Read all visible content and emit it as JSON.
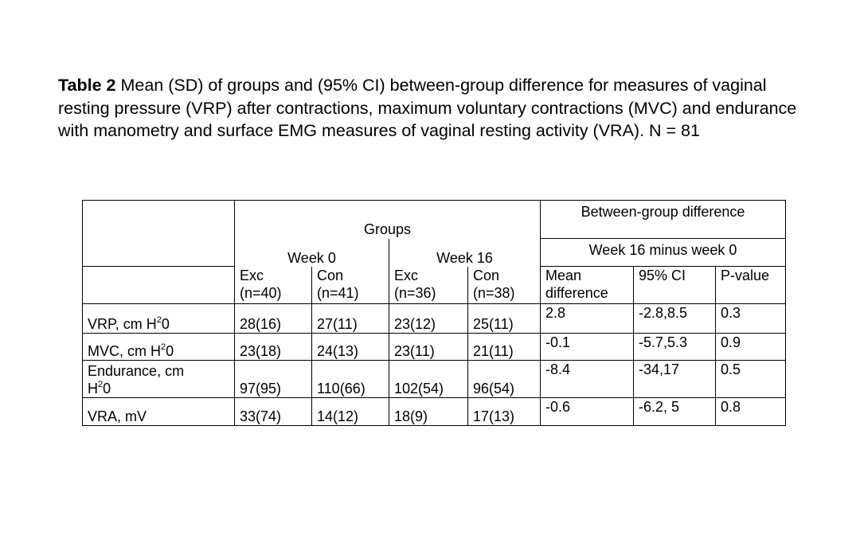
{
  "caption": {
    "label": "Table 2",
    "text": " Mean (SD) of groups and (95% CI) between-group difference for measures of vaginal resting pressure (VRP) after contractions, maximum voluntary contractions (MVC) and endurance with manometry and surface EMG measures of vaginal resting activity (VRA). N = 81"
  },
  "table": {
    "groups_header": "Groups",
    "between_header": "Between-group difference",
    "week0": "Week 0",
    "week16": "Week 16",
    "week_diff": "Week 16 minus week 0",
    "exc": "Exc",
    "con": "Con",
    "n_exc0": "(n=40)",
    "n_con0": "(n=41)",
    "n_exc16": "(n=36)",
    "n_con16": "(n=38)",
    "mean_diff_1": "Mean",
    "mean_diff_2": "difference",
    "ci": "95% CI",
    "pvalue": "P-value",
    "rows": [
      {
        "label_a": "VRP, cm H",
        "sup": "2",
        "label_b": "0",
        "exc0": "28(16)",
        "con0": "27(11)",
        "exc16": "23(12)",
        "con16": "25(11)",
        "mean": "2.8",
        "ci": "-2.8,8.5",
        "p": "0.3"
      },
      {
        "label_a": "MVC, cm H",
        "sup": "2",
        "label_b": "0",
        "exc0": "23(18)",
        "con0": "24(13)",
        "exc16": "23(11)",
        "con16": "21(11)",
        "mean": "-0.1",
        "ci": "-5.7,5.3",
        "p": "0.9"
      },
      {
        "label_line1": "Endurance, cm",
        "label_a": "H",
        "sup": "2",
        "label_b": "0",
        "exc0": "97(95)",
        "con0": "110(66)",
        "exc16": "102(54)",
        "con16": "96(54)",
        "mean": "-8.4",
        "ci": "-34,17",
        "p": "0.5"
      },
      {
        "label_a": "VRA, mV",
        "exc0": "33(74)",
        "con0": "14(12)",
        "exc16": "18(9)",
        "con16": "17(13)",
        "mean": "-0.6",
        "ci": "-6.2, 5",
        "p": "0.8"
      }
    ]
  }
}
